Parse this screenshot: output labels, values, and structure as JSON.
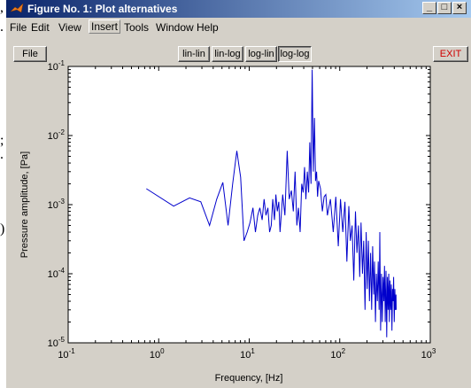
{
  "window": {
    "title": "Figure No. 1: Plot alternatives",
    "controls": [
      "_",
      "□",
      "×"
    ]
  },
  "menu": [
    "File",
    "Edit",
    "View",
    "Insert",
    "Tools",
    "Window",
    "Help"
  ],
  "toolbar": {
    "file_label": "File",
    "scale_buttons": [
      "lin-lin",
      "lin-log",
      "log-lin",
      "log-log"
    ],
    "active_scale": "log-log",
    "exit_label": "EXIT",
    "exit_color": "#d00000"
  },
  "background_fragments": [
    ",",
    ".",
    ";",
    ".",
    ")"
  ],
  "chart_data": {
    "type": "line",
    "xlabel": "Frequency, [Hz]",
    "ylabel": "Pressure amplitude, [Pa]",
    "xscale": "log",
    "yscale": "log",
    "xlim": [
      0.1,
      1000
    ],
    "ylim": [
      1e-05,
      0.1
    ],
    "xticks": [
      "10^-1",
      "10^0",
      "10^1",
      "10^2",
      "10^3"
    ],
    "yticks": [
      "10^-5",
      "10^-4",
      "10^-3",
      "10^-2",
      "10^-1"
    ],
    "line_color": "#0000cc",
    "grid": false,
    "series": [
      {
        "x": [
          0.73,
          1.46,
          2.19,
          2.92,
          3.65,
          4.38,
          5.11,
          5.84,
          6.57,
          7.3,
          8.03,
          8.76,
          9.49,
          10.2,
          11.0,
          11.7,
          12.4,
          13.1,
          13.9,
          14.6,
          15.3,
          16.1,
          16.8,
          17.5,
          18.2,
          19.0,
          19.7,
          20.4,
          21.2,
          21.9,
          23.4,
          24.8,
          26.3,
          27.7,
          29.2,
          30.7,
          32.1,
          33.6,
          35.0,
          36.5,
          38.0,
          39.4,
          40.9,
          42.3,
          43.8,
          45.3,
          46.7,
          48.2,
          49.6,
          51.1,
          52.6,
          54.0,
          55.5,
          56.9,
          58.4,
          61.3,
          64.2,
          67.2,
          70.1,
          73.0,
          78.8,
          84.7,
          90.5,
          96.4,
          102,
          108,
          114,
          120,
          126,
          131,
          137,
          143,
          149,
          155,
          161,
          166,
          172,
          178,
          184,
          190,
          196,
          201,
          207,
          213,
          219,
          225,
          231,
          237,
          242,
          248,
          254,
          260,
          266,
          272,
          277,
          283,
          289,
          295,
          301,
          307,
          312,
          318,
          324,
          330,
          336,
          342,
          348,
          353,
          359,
          365,
          371,
          377,
          383,
          388,
          394,
          400,
          406,
          412,
          418,
          420
        ],
        "y": [
          0.0017,
          0.00095,
          0.00125,
          0.0011,
          0.0005,
          0.0012,
          0.0021,
          0.0005,
          0.002,
          0.006,
          0.0025,
          0.0003,
          0.0004,
          0.00055,
          0.0009,
          0.0004,
          0.0007,
          0.0009,
          0.0006,
          0.0012,
          0.0007,
          0.0009,
          0.0004,
          0.0005,
          0.0012,
          0.0006,
          0.0014,
          0.0008,
          0.0011,
          0.0004,
          0.0014,
          0.0007,
          0.006,
          0.0012,
          0.0016,
          0.0008,
          0.003,
          0.0005,
          0.0009,
          0.0004,
          0.002,
          0.0015,
          0.0035,
          0.0012,
          0.003,
          0.0015,
          0.008,
          0.002,
          0.09,
          0.003,
          0.018,
          0.0022,
          0.003,
          0.0013,
          0.0022,
          0.0017,
          0.0008,
          0.0013,
          0.0014,
          0.0007,
          0.0012,
          0.0004,
          0.0013,
          0.00025,
          0.0012,
          0.0004,
          0.0011,
          0.00015,
          0.00095,
          0.0003,
          0.0005,
          8e-05,
          0.0008,
          0.0002,
          0.0005,
          9e-05,
          0.00055,
          0.0001,
          0.0003,
          3e-05,
          0.0004,
          6e-05,
          0.0003,
          4e-05,
          0.0002,
          3e-05,
          0.00025,
          5e-05,
          0.00015,
          2e-05,
          0.0001,
          4e-05,
          0.00015,
          3e-05,
          0.0004,
          1.5e-05,
          0.0001,
          2e-05,
          9e-05,
          4e-05,
          0.00013,
          2e-05,
          0.00011,
          1.2e-05,
          9e-05,
          3e-05,
          0.0001,
          2e-05,
          8e-05,
          3e-05,
          7e-05,
          1.5e-05,
          6e-05,
          4e-05,
          9e-05,
          2e-05,
          6e-05,
          3e-05,
          5e-05,
          3e-05
        ]
      }
    ]
  }
}
